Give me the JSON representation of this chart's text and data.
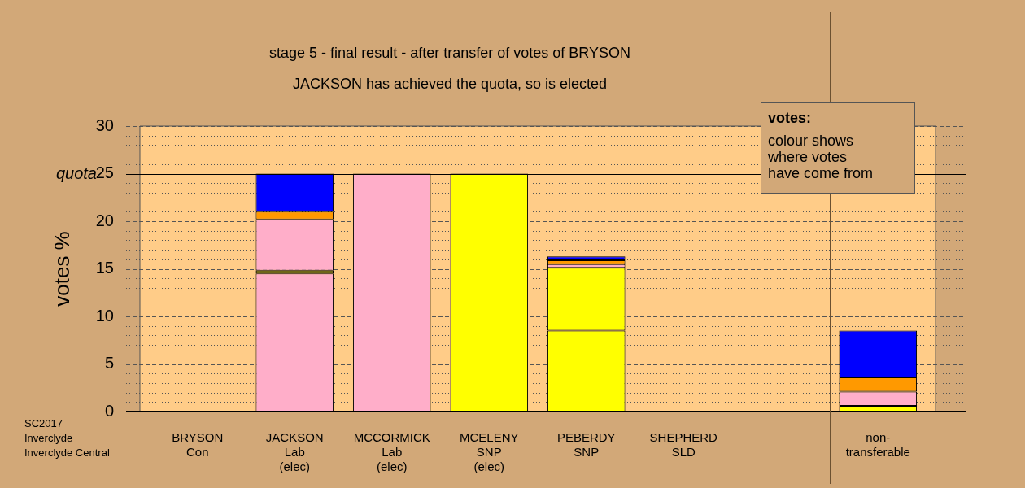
{
  "chart_data": {
    "type": "bar",
    "stacked": true,
    "title": "stage 5 - final result - after transfer of votes of BRYSON",
    "subtitle": "JACKSON has achieved the quota, so is elected",
    "ylabel": "votes %",
    "categories": [
      "BRYSON\nCon",
      "JACKSON\nLab\n(elec)",
      "MCCORMICK\nLab\n(elec)",
      "MCELENY\nSNP\n(elec)",
      "PEBERDY\nSNP",
      "SHEPHERD\nSLD",
      null,
      "non-\ntransferable"
    ],
    "series": [
      {
        "colors": [
          "#ffaec9",
          "#ffaec9",
          "#ffaec9",
          "#ffff00",
          "#ffff00",
          "#ffff00",
          "#ffff00",
          "#ffff00"
        ],
        "values": [
          0,
          14.5,
          25,
          25,
          8.5,
          0,
          null,
          null
        ]
      },
      {
        "color": "#ffff00",
        "values": [
          0,
          0.3,
          0,
          0,
          6.6,
          0,
          null,
          0.6
        ]
      },
      {
        "color": "#ffaec9",
        "values": [
          0,
          5.4,
          0,
          0,
          0.4,
          0,
          null,
          1.5
        ]
      },
      {
        "color": "#ff9900",
        "values": [
          0,
          0.8,
          0,
          0,
          0.4,
          0,
          null,
          1.5
        ]
      },
      {
        "color": "#0000ff",
        "values": [
          0,
          4.0,
          0,
          0,
          0.4,
          0,
          null,
          4.9
        ]
      }
    ],
    "ylim": [
      0,
      30
    ],
    "yticks": [
      0,
      {
        "value": 1,
        "label": null
      },
      {
        "value": 2,
        "label": null
      },
      {
        "value": 3,
        "label": null
      },
      {
        "value": 4,
        "label": null
      },
      5,
      {
        "value": 6,
        "label": null
      },
      {
        "value": 7,
        "label": null
      },
      {
        "value": 8,
        "label": null
      },
      {
        "value": 9,
        "label": null
      },
      10,
      {
        "value": 11,
        "label": null
      },
      {
        "value": 12,
        "label": null
      },
      {
        "value": 13,
        "label": null
      },
      {
        "value": 14,
        "label": null
      },
      15,
      {
        "value": 16,
        "label": null
      },
      {
        "value": 17,
        "label": null
      },
      {
        "value": 18,
        "label": null
      },
      {
        "value": 19,
        "label": null
      },
      20,
      {
        "value": 21,
        "label": null
      },
      {
        "value": 22,
        "label": null
      },
      {
        "value": 23,
        "label": null
      },
      {
        "value": 24,
        "label": null
      },
      25,
      {
        "value": 26,
        "label": null
      },
      {
        "value": 27,
        "label": null
      },
      {
        "value": 28,
        "label": null
      },
      {
        "value": 29,
        "label": null
      },
      30
    ],
    "grid": "y",
    "ref_lines": [
      {
        "axis": "y",
        "value": 25,
        "label": "quota",
        "color": "#000000"
      },
      {
        "axis": "x",
        "value": "non-\ntransferable",
        "color": "#6b5030"
      }
    ],
    "annotations": [
      "votes:",
      "colour shows\nwhere votes\nhave come from",
      "SC2017\nInverclyde\nInverclyde Central"
    ]
  }
}
